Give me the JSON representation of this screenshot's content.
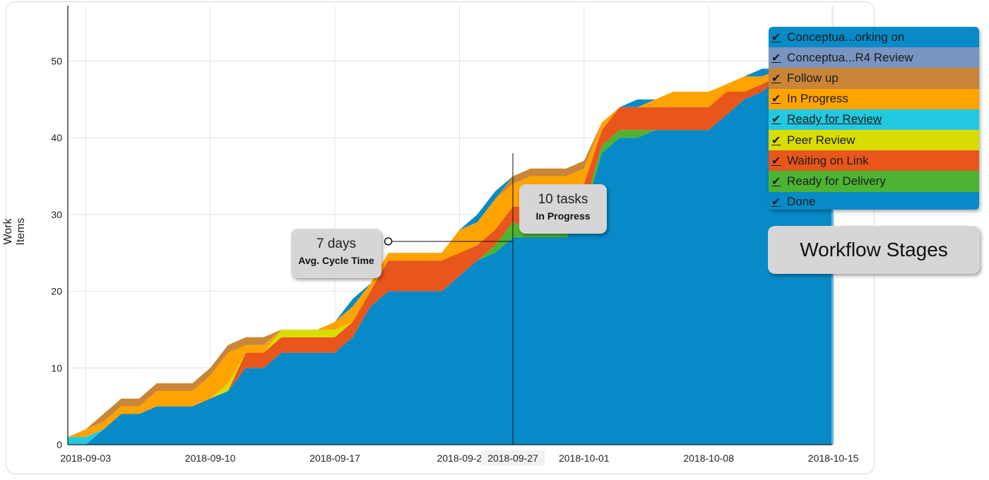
{
  "chart_data": {
    "type": "area",
    "stacked": true,
    "ylabel": "Work Items",
    "ylim": [
      0,
      57
    ],
    "yticks": [
      0,
      10,
      20,
      30,
      40,
      50
    ],
    "xticks": [
      "2018-09-03",
      "2018-09-10",
      "2018-09-17",
      "2018-09-2",
      "2018-10-01",
      "2018-10-08",
      "2018-10-15"
    ],
    "hover_date": "2018-09-27",
    "x": [
      "2018-09-02",
      "2018-09-03",
      "2018-09-04",
      "2018-09-05",
      "2018-09-06",
      "2018-09-07",
      "2018-09-08",
      "2018-09-09",
      "2018-09-10",
      "2018-09-11",
      "2018-09-12",
      "2018-09-13",
      "2018-09-14",
      "2018-09-15",
      "2018-09-16",
      "2018-09-17",
      "2018-09-18",
      "2018-09-19",
      "2018-09-20",
      "2018-09-21",
      "2018-09-22",
      "2018-09-23",
      "2018-09-24",
      "2018-09-25",
      "2018-09-26",
      "2018-09-27",
      "2018-09-28",
      "2018-09-29",
      "2018-09-30",
      "2018-10-01",
      "2018-10-02",
      "2018-10-03",
      "2018-10-04",
      "2018-10-05",
      "2018-10-06",
      "2018-10-07",
      "2018-10-08",
      "2018-10-09",
      "2018-10-10",
      "2018-10-11",
      "2018-10-12",
      "2018-10-13",
      "2018-10-14",
      "2018-10-15"
    ],
    "series": [
      {
        "name": "Done",
        "color": "#078ac7",
        "values": [
          0,
          0,
          2,
          4,
          4,
          5,
          5,
          5,
          6,
          7,
          10,
          10,
          12,
          12,
          12,
          12,
          14,
          18,
          20,
          20,
          20,
          20,
          22,
          24,
          25,
          27,
          27,
          27,
          27,
          30,
          38,
          40,
          40,
          41,
          41,
          41,
          41,
          43,
          45,
          46,
          48,
          50,
          50,
          50
        ]
      },
      {
        "name": "Ready for Delivery",
        "color": "#4cb432",
        "values": [
          0,
          0,
          0,
          0,
          0,
          0,
          0,
          0,
          0,
          0,
          0,
          0,
          0,
          0,
          0,
          0,
          0,
          0,
          0,
          0,
          0,
          0,
          0,
          0,
          1,
          2,
          1,
          1,
          1,
          1,
          1,
          1,
          1,
          0,
          0,
          0,
          0,
          0,
          0,
          0,
          0,
          0,
          0,
          0
        ]
      },
      {
        "name": "Waiting on Link",
        "color": "#e8561c",
        "values": [
          0,
          0,
          0,
          0,
          0,
          0,
          0,
          0,
          0,
          0,
          2,
          2,
          2,
          2,
          2,
          2,
          2,
          2,
          4,
          4,
          4,
          4,
          3,
          2,
          2,
          2,
          3,
          3,
          3,
          3,
          2,
          3,
          3,
          3,
          3,
          3,
          3,
          3,
          1,
          1,
          0,
          0,
          0,
          0
        ]
      },
      {
        "name": "Peer Review",
        "color": "#d9dc00",
        "values": [
          0,
          0,
          0,
          0,
          0,
          0,
          0,
          0,
          0,
          1,
          0,
          0,
          1,
          1,
          1,
          1,
          0,
          0,
          0,
          0,
          0,
          0,
          0,
          0,
          0,
          0,
          0,
          0,
          0,
          0,
          0,
          0,
          0,
          0,
          0,
          0,
          0,
          0,
          0,
          0,
          0,
          0,
          0,
          0
        ]
      },
      {
        "name": "Ready for Review",
        "color": "#22c9e0",
        "values": [
          1,
          1,
          0,
          0,
          0,
          0,
          0,
          0,
          0,
          0,
          0,
          0,
          0,
          0,
          0,
          0,
          0,
          0,
          0,
          0,
          0,
          0,
          0,
          0,
          0,
          0,
          0,
          0,
          0,
          0,
          0,
          0,
          0,
          0,
          0,
          0,
          0,
          0,
          0,
          0,
          0,
          0,
          0,
          0
        ]
      },
      {
        "name": "In Progress",
        "color": "#ffa300",
        "values": [
          0,
          1,
          1,
          1,
          1,
          2,
          2,
          2,
          3,
          4,
          1,
          1,
          0,
          0,
          0,
          1,
          2,
          1,
          1,
          1,
          1,
          1,
          3,
          3,
          4,
          3,
          4,
          4,
          4,
          2,
          1,
          0,
          0,
          1,
          2,
          2,
          2,
          1,
          2,
          1,
          1,
          0,
          0,
          0
        ]
      },
      {
        "name": "Follow up",
        "color": "#c98538",
        "values": [
          0,
          0,
          1,
          1,
          1,
          1,
          1,
          1,
          1,
          1,
          1,
          1,
          0,
          0,
          0,
          0,
          0,
          0,
          0,
          0,
          0,
          0,
          0,
          0,
          0,
          1,
          1,
          1,
          1,
          1,
          0,
          0,
          0,
          0,
          0,
          0,
          0,
          0,
          0,
          0,
          0,
          0,
          0,
          0
        ]
      },
      {
        "name": "Conceptua...R4 Review",
        "color": "#7894c0",
        "values": [
          0,
          0,
          0,
          0,
          0,
          0,
          0,
          0,
          0,
          0,
          0,
          0,
          0,
          0,
          0,
          0,
          0,
          0,
          0,
          0,
          0,
          0,
          0,
          0,
          0,
          0,
          0,
          0,
          0,
          0,
          0,
          0,
          0,
          0,
          0,
          0,
          0,
          0,
          0,
          0,
          0,
          0,
          0,
          0
        ]
      },
      {
        "name": "Conceptua...orking on",
        "color": "#078ac7",
        "values": [
          0,
          0,
          0,
          0,
          0,
          0,
          0,
          0,
          0,
          0,
          0,
          0,
          0,
          0,
          0,
          0,
          1,
          0,
          0,
          0,
          0,
          0,
          0,
          1,
          1,
          0,
          0,
          0,
          0,
          0,
          0,
          0,
          1,
          0,
          0,
          0,
          0,
          0,
          0,
          1,
          0,
          0,
          0,
          0
        ]
      }
    ]
  },
  "callouts": {
    "cycle": {
      "value": "7 days",
      "label": "Avg. Cycle Time"
    },
    "tasks": {
      "value": "10 tasks",
      "label": "In Progress"
    }
  },
  "legend": {
    "check_icon": "checkmark-icon",
    "items": [
      {
        "label": "Conceptua...orking on",
        "color": "#078ac7"
      },
      {
        "label": "Conceptua...R4 Review",
        "color": "#7894c0"
      },
      {
        "label": "Follow up",
        "color": "#c98538"
      },
      {
        "label": "In Progress",
        "color": "#ffa300"
      },
      {
        "label": "Ready for Review",
        "color": "#22c9e0"
      },
      {
        "label": "Peer Review",
        "color": "#d9dc00"
      },
      {
        "label": "Waiting on Link",
        "color": "#e8561c"
      },
      {
        "label": "Ready for Delivery",
        "color": "#4cb432"
      },
      {
        "label": "Done",
        "color": "#078ac7"
      }
    ]
  },
  "stages_label": "Workflow Stages"
}
